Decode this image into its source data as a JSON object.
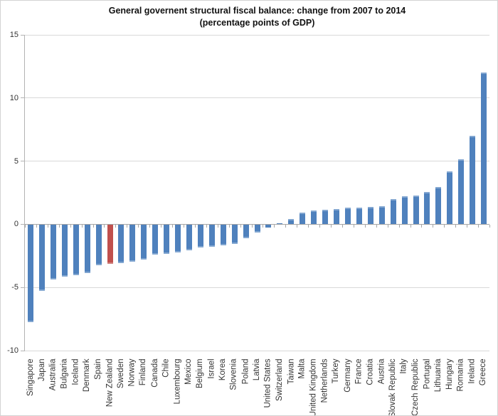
{
  "chart_data": {
    "type": "bar",
    "title": "General governent structural fiscal balance: change from 2007 to 2014",
    "subtitle": "(percentage points of GDP)",
    "categories": [
      "Singapore",
      "Japan",
      "Australia",
      "Bulgaria",
      "Iceland",
      "Denmark",
      "Spain",
      "New Zealand",
      "Sweden",
      "Norway",
      "Finland",
      "Canada",
      "Chile",
      "Luxembourg",
      "Mexico",
      "Belgium",
      "Israel",
      "Korea",
      "Slovenia",
      "Poland",
      "Latvia",
      "United States",
      "Switzerland",
      "Taiwan",
      "Malta",
      "United Kingdom",
      "Netherlands",
      "Turkey",
      "Germany",
      "France",
      "Croatia",
      "Austria",
      "Slovak Republic",
      "Italy",
      "Czech Republic",
      "Portugal",
      "Lithuania",
      "Hungary",
      "Romania",
      "Ireland",
      "Greece"
    ],
    "values": [
      -7.7,
      -5.2,
      -4.3,
      -4.1,
      -4.0,
      -3.8,
      -3.2,
      -3.1,
      -3.0,
      -2.9,
      -2.75,
      -2.35,
      -2.3,
      -2.2,
      -2.0,
      -1.8,
      -1.75,
      -1.6,
      -1.5,
      -1.05,
      -0.6,
      -0.2,
      0.1,
      0.4,
      0.95,
      1.1,
      1.15,
      1.2,
      1.3,
      1.3,
      1.4,
      1.45,
      2.0,
      2.2,
      2.3,
      2.55,
      2.95,
      4.2,
      5.15,
      7.0,
      12.0
    ],
    "highlight": {
      "category": "New Zealand",
      "color": "#C0504D"
    },
    "bar_color": "#4F81BD",
    "xlabel": "",
    "ylabel": "",
    "ylim": [
      -10,
      15
    ],
    "yticks": [
      15,
      10,
      5,
      0,
      -5,
      -10
    ],
    "ytick_labels": [
      "15",
      "10",
      "5",
      "0",
      "-5",
      "-10"
    ],
    "grid": true,
    "legend_position": "none"
  },
  "colors": {
    "bar": "#4F81BD",
    "highlight": "#C0504D",
    "gridline": "#D9D9D9",
    "zero_axis": "#A6A6A6",
    "label_text": "#333333"
  }
}
